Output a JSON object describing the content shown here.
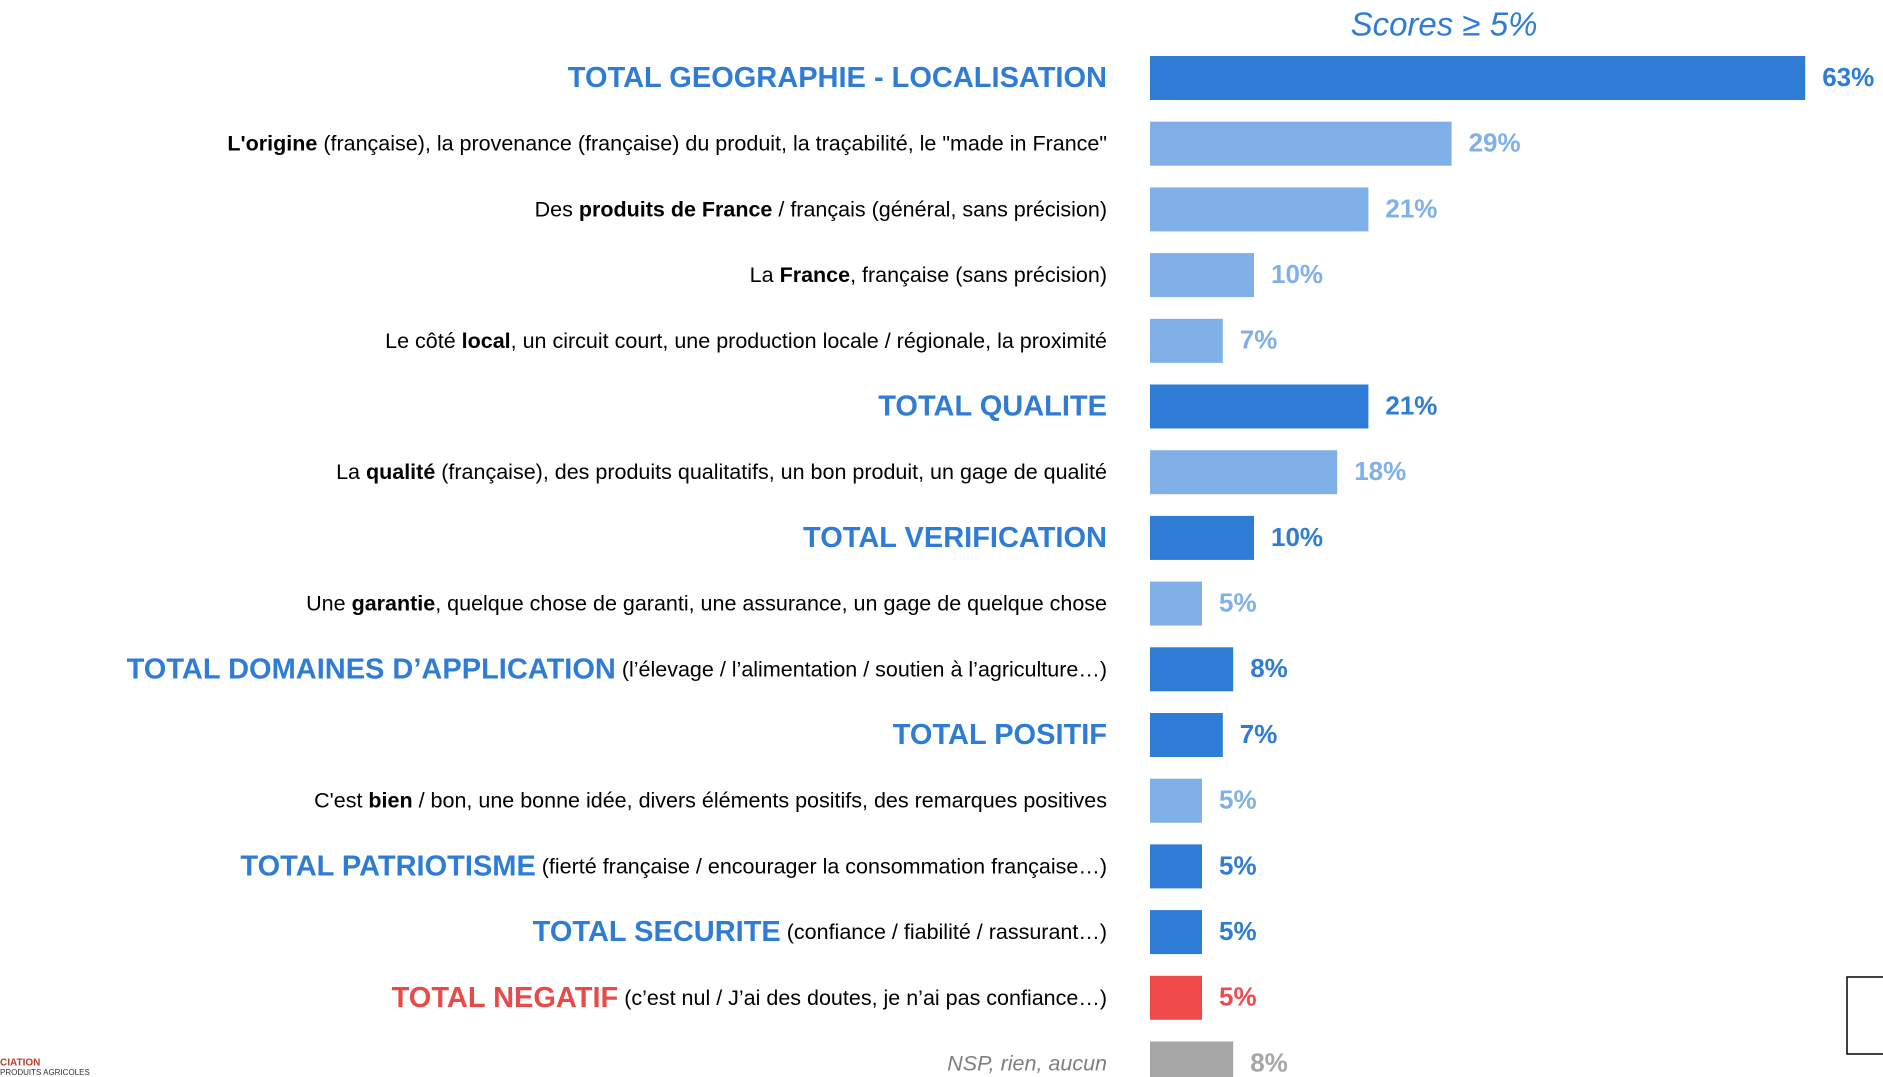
{
  "chart_data": {
    "type": "bar",
    "orientation": "horizontal",
    "subtitle": "Scores ≥ 5%",
    "categories": [
      [
        {
          "text": "TOTAL GEOGRAPHIE - LOCALISATION",
          "style": "total"
        }
      ],
      [
        {
          "text": "L'origine",
          "style": "bold"
        },
        {
          "text": " (française), la provenance (française) du produit, la traçabilité, le \"made in France\"",
          "style": "normal"
        }
      ],
      [
        {
          "text": "Des ",
          "style": "normal"
        },
        {
          "text": "produits de France",
          "style": "bold"
        },
        {
          "text": " / français (général, sans précision)",
          "style": "normal"
        }
      ],
      [
        {
          "text": "La ",
          "style": "normal"
        },
        {
          "text": "France",
          "style": "bold"
        },
        {
          "text": ", française (sans précision)",
          "style": "normal"
        }
      ],
      [
        {
          "text": "Le côté ",
          "style": "normal"
        },
        {
          "text": "local",
          "style": "bold"
        },
        {
          "text": ", un circuit court, une production locale / régionale, la proximité",
          "style": "normal"
        }
      ],
      [
        {
          "text": "TOTAL QUALITE",
          "style": "total"
        }
      ],
      [
        {
          "text": "La ",
          "style": "normal"
        },
        {
          "text": "qualité",
          "style": "bold"
        },
        {
          "text": " (française), des produits qualitatifs, un bon produit, un gage de qualité",
          "style": "normal"
        }
      ],
      [
        {
          "text": "TOTAL VERIFICATION",
          "style": "total"
        }
      ],
      [
        {
          "text": "Une ",
          "style": "normal"
        },
        {
          "text": "garantie",
          "style": "bold"
        },
        {
          "text": ", quelque chose de garanti, une assurance, un gage de quelque chose",
          "style": "normal"
        }
      ],
      [
        {
          "text": "TOTAL DOMAINES D’APPLICATION",
          "style": "total"
        },
        {
          "text": " (l’élevage / l’alimentation / soutien à l’agriculture…)",
          "style": "normal"
        }
      ],
      [
        {
          "text": "TOTAL POSITIF",
          "style": "total"
        }
      ],
      [
        {
          "text": "C'est ",
          "style": "normal"
        },
        {
          "text": "bien",
          "style": "bold"
        },
        {
          "text": " / bon, une bonne idée, divers éléments positifs, des remarques positives",
          "style": "normal"
        }
      ],
      [
        {
          "text": "TOTAL PATRIOTISME",
          "style": "total"
        },
        {
          "text": " (fierté française / encourager la consommation française…)",
          "style": "normal"
        }
      ],
      [
        {
          "text": "TOTAL SECURITE",
          "style": "total"
        },
        {
          "text": " (confiance / fiabilité / rassurant…)",
          "style": "normal"
        }
      ],
      [
        {
          "text": "TOTAL NEGATIF",
          "style": "negative"
        },
        {
          "text": " (c’est nul / J’ai des doutes, je n’ai pas confiance…)",
          "style": "normal"
        }
      ],
      [
        {
          "text": "NSP, rien, aucun",
          "style": "italic"
        }
      ]
    ],
    "values": [
      63,
      29,
      21,
      10,
      7,
      21,
      18,
      10,
      5,
      8,
      7,
      5,
      5,
      5,
      5,
      8
    ],
    "value_labels": [
      "63%",
      "29%",
      "21%",
      "10%",
      "7%",
      "21%",
      "18%",
      "10%",
      "5%",
      "8%",
      "7%",
      "5%",
      "5%",
      "5%",
      "5%",
      "8%"
    ],
    "colors": [
      "#2E7CD6",
      "#7FB0E8",
      "#7FB0E8",
      "#7FB0E8",
      "#7FB0E8",
      "#2E7CD6",
      "#7FB0E8",
      "#2E7CD6",
      "#7FB0E8",
      "#2E7CD6",
      "#2E7CD6",
      "#7FB0E8",
      "#2E7CD6",
      "#2E7CD6",
      "#EF4B4B",
      "#A6A6A6"
    ],
    "annotations": [
      "CIATION",
      "PRODUITS AGRICOLES"
    ]
  }
}
